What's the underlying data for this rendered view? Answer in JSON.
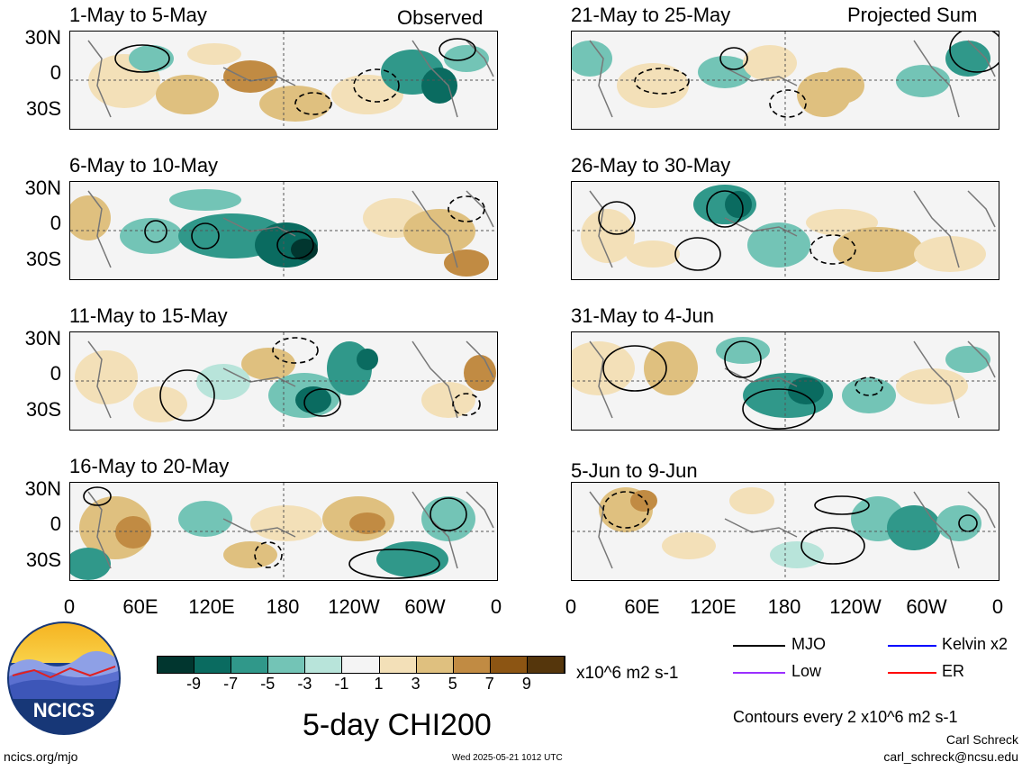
{
  "panels": {
    "observed_label": "Observed",
    "projected_label": "Projected Sum",
    "left": [
      {
        "title": "1-May to 5-May"
      },
      {
        "title": "6-May to 10-May"
      },
      {
        "title": "11-May to 15-May"
      },
      {
        "title": "16-May to 20-May"
      }
    ],
    "right": [
      {
        "title": "21-May to 25-May"
      },
      {
        "title": "26-May to 30-May"
      },
      {
        "title": "31-May to 4-Jun"
      },
      {
        "title": "5-Jun to 9-Jun"
      }
    ]
  },
  "axes": {
    "lat_labels": [
      "30N",
      "0",
      "30S"
    ],
    "lon_labels": [
      "0",
      "60E",
      "120E",
      "180",
      "120W",
      "60W",
      "0"
    ]
  },
  "colorbar": {
    "labels": [
      "-9",
      "-7",
      "-5",
      "-3",
      "-1",
      "1",
      "3",
      "5",
      "7",
      "9"
    ],
    "colors": [
      "#01362f",
      "#0a6b60",
      "#30988a",
      "#73c4b6",
      "#b8e4da",
      "#f4f4f4",
      "#f3e0b8",
      "#dfc07f",
      "#c18b43",
      "#8c5513",
      "#55360c"
    ],
    "units": "x10^6 m2 s-1"
  },
  "legend": {
    "items": [
      {
        "label": "MJO",
        "color": "#000000"
      },
      {
        "label": "Kelvin x2",
        "color": "#0000ff"
      },
      {
        "label": "Low",
        "color": "#9b30ff"
      },
      {
        "label": "ER",
        "color": "#ff0000"
      }
    ],
    "contour_note": "Contours every 2 x10^6 m2 s-1"
  },
  "footer": {
    "title": "5-day CHI200",
    "site": "ncics.org/mjo",
    "timestamp": "Wed 2025-05-21 1012 UTC",
    "author": "Carl Schreck",
    "email": "carl_schreck@ncsu.edu",
    "logo_text": "NCICS"
  }
}
